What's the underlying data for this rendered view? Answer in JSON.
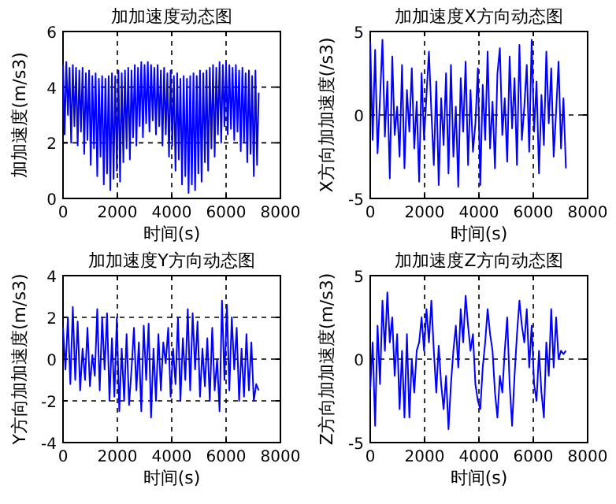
{
  "chart_data": [
    {
      "type": "line",
      "title": "加加速度动态图",
      "xlabel": "时间(s)",
      "ylabel": "加加速度(m/s3)",
      "xlim": [
        0,
        8000
      ],
      "ylim": [
        0,
        6
      ],
      "xticks": [
        0,
        2000,
        4000,
        6000,
        8000
      ],
      "yticks": [
        0,
        2,
        4,
        6
      ],
      "grid": true,
      "line_style": "solid",
      "x": [
        0,
        60,
        120,
        180,
        240,
        300,
        360,
        420,
        480,
        540,
        600,
        660,
        720,
        780,
        840,
        900,
        960,
        1020,
        1080,
        1140,
        1200,
        1260,
        1320,
        1380,
        1440,
        1500,
        1560,
        1620,
        1680,
        1740,
        1800,
        1860,
        1920,
        1980,
        2040,
        2100,
        2160,
        2220,
        2280,
        2340,
        2400,
        2460,
        2520,
        2580,
        2640,
        2700,
        2760,
        2820,
        2880,
        2940,
        3000,
        3060,
        3120,
        3180,
        3240,
        3300,
        3360,
        3420,
        3480,
        3540,
        3600,
        3660,
        3720,
        3780,
        3840,
        3900,
        3960,
        4020,
        4080,
        4140,
        4200,
        4260,
        4320,
        4380,
        4440,
        4500,
        4560,
        4620,
        4680,
        4740,
        4800,
        4860,
        4920,
        4980,
        5040,
        5100,
        5160,
        5220,
        5280,
        5340,
        5400,
        5460,
        5520,
        5580,
        5640,
        5700,
        5760,
        5820,
        5880,
        5940,
        6000,
        6060,
        6120,
        6180,
        6240,
        6300,
        6360,
        6420,
        6480,
        6540,
        6600,
        6660,
        6720,
        6780,
        6840,
        6900,
        6960,
        7020,
        7080,
        7140,
        7200
      ],
      "series": [
        {
          "color": "#0000ff",
          "values": [
            4.8,
            2.3,
            4.9,
            3.0,
            4.7,
            2.0,
            4.8,
            2.6,
            4.7,
            1.9,
            4.6,
            2.4,
            4.7,
            1.6,
            4.5,
            2.1,
            4.6,
            1.2,
            4.4,
            1.8,
            4.5,
            0.8,
            4.3,
            1.5,
            4.4,
            0.5,
            4.3,
            0.9,
            4.4,
            0.3,
            4.5,
            0.7,
            4.4,
            1.0,
            4.6,
            0.6,
            4.5,
            1.3,
            4.6,
            1.8,
            4.7,
            1.4,
            4.6,
            2.2,
            4.8,
            1.9,
            4.7,
            2.6,
            4.9,
            2.2,
            4.8,
            2.7,
            4.9,
            2.4,
            4.8,
            2.8,
            4.7,
            2.3,
            4.8,
            2.6,
            4.6,
            1.9,
            4.7,
            2.3,
            4.5,
            1.5,
            4.6,
            1.9,
            4.4,
            1.0,
            4.5,
            1.4,
            4.3,
            0.5,
            4.4,
            0.8,
            4.3,
            0.2,
            4.4,
            0.5,
            4.5,
            0.3,
            4.4,
            0.9,
            4.6,
            0.6,
            4.5,
            1.3,
            4.6,
            1.0,
            4.7,
            1.8,
            4.8,
            1.5,
            4.7,
            2.3,
            4.9,
            2.0,
            4.8,
            2.6,
            4.9,
            2.3,
            4.8,
            2.5,
            4.7,
            2.1,
            4.8,
            2.4,
            4.6,
            1.7,
            4.7,
            2.0,
            4.5,
            1.3,
            4.6,
            1.6,
            4.4,
            0.8,
            4.6,
            1.2,
            3.8
          ]
        }
      ]
    },
    {
      "type": "line",
      "title": "加加速度X方向动态图",
      "xlabel": "时间(s)",
      "ylabel": "X方向加加速度(/s3)",
      "xlim": [
        0,
        8000
      ],
      "ylim": [
        -5,
        5
      ],
      "xticks": [
        0,
        2000,
        4000,
        6000,
        8000
      ],
      "yticks": [
        -5,
        0,
        5
      ],
      "grid": true,
      "line_style": "solid",
      "x": [
        0,
        90,
        180,
        270,
        360,
        450,
        540,
        630,
        720,
        810,
        900,
        990,
        1080,
        1170,
        1260,
        1350,
        1440,
        1530,
        1620,
        1710,
        1800,
        1890,
        1980,
        2070,
        2160,
        2250,
        2340,
        2430,
        2520,
        2610,
        2700,
        2790,
        2880,
        2970,
        3060,
        3150,
        3240,
        3330,
        3420,
        3510,
        3600,
        3690,
        3780,
        3870,
        3960,
        4050,
        4140,
        4230,
        4320,
        4410,
        4500,
        4590,
        4680,
        4770,
        4860,
        4950,
        5040,
        5130,
        5220,
        5310,
        5400,
        5490,
        5580,
        5670,
        5760,
        5850,
        5940,
        6030,
        6120,
        6210,
        6300,
        6390,
        6480,
        6570,
        6660,
        6750,
        6840,
        6930,
        7020,
        7110,
        7200
      ],
      "series": [
        {
          "color": "#0000ff",
          "values": [
            4.4,
            -1.5,
            3.9,
            -2.3,
            1.0,
            4.5,
            -1.3,
            2.0,
            -3.8,
            3.5,
            -1.2,
            0.5,
            -2.5,
            3.0,
            -3.2,
            1.5,
            -1.0,
            2.8,
            -2.0,
            0.8,
            -4.0,
            2.5,
            -1.5,
            1.2,
            3.8,
            0.2,
            -3.0,
            2.0,
            -4.2,
            1.0,
            -1.8,
            2.5,
            -3.5,
            3.0,
            -2.5,
            0.5,
            -4.3,
            2.2,
            -1.0,
            3.2,
            -3.0,
            1.5,
            -2.2,
            -0.5,
            2.8,
            -4.2,
            1.8,
            -1.5,
            3.8,
            -2.0,
            0.8,
            -3.2,
            2.5,
            4.0,
            -1.2,
            1.0,
            -2.8,
            3.5,
            -0.8,
            2.2,
            -3.0,
            4.2,
            -1.5,
            0.5,
            3.0,
            -2.2,
            4.5,
            -1.0,
            2.0,
            -3.5,
            1.2,
            -1.8,
            3.8,
            -0.5,
            2.8,
            -2.5,
            0.2,
            3.2,
            -2.0,
            1.0,
            -3.2
          ]
        }
      ]
    },
    {
      "type": "line",
      "title": "加加速度Y方向动态图",
      "xlabel": "时间(s)",
      "ylabel": "Y方向加加速度(m/s3)",
      "xlim": [
        0,
        8000
      ],
      "ylim": [
        -4,
        4
      ],
      "xticks": [
        0,
        2000,
        4000,
        6000,
        8000
      ],
      "yticks": [
        -4,
        -2,
        0,
        2,
        4
      ],
      "grid": true,
      "line_style": "solid",
      "x": [
        0,
        90,
        180,
        270,
        360,
        450,
        540,
        630,
        720,
        810,
        900,
        990,
        1080,
        1170,
        1260,
        1350,
        1440,
        1530,
        1620,
        1710,
        1800,
        1890,
        1980,
        2070,
        2160,
        2250,
        2340,
        2430,
        2520,
        2610,
        2700,
        2790,
        2880,
        2970,
        3060,
        3150,
        3240,
        3330,
        3420,
        3510,
        3600,
        3690,
        3780,
        3870,
        3960,
        4050,
        4140,
        4230,
        4320,
        4410,
        4500,
        4590,
        4680,
        4770,
        4860,
        4950,
        5040,
        5130,
        5220,
        5310,
        5400,
        5490,
        5580,
        5670,
        5760,
        5850,
        5940,
        6030,
        6120,
        6210,
        6300,
        6390,
        6480,
        6570,
        6660,
        6750,
        6840,
        6930,
        7020,
        7110,
        7200
      ],
      "series": [
        {
          "color": "#0000ff",
          "values": [
            1.5,
            -0.5,
            2.0,
            -1.2,
            2.5,
            -1.0,
            1.8,
            -1.5,
            0.5,
            -1.0,
            1.5,
            -1.3,
            0.2,
            -0.8,
            2.4,
            -1.5,
            2.0,
            -0.5,
            2.2,
            -2.0,
            1.0,
            -1.8,
            2.0,
            -2.5,
            0.5,
            -2.0,
            1.2,
            -2.2,
            -0.5,
            1.5,
            -1.5,
            0.8,
            -2.5,
            1.6,
            -1.0,
            1.7,
            -2.8,
            0.5,
            -2.0,
            1.2,
            -1.5,
            0.8,
            -0.2,
            1.5,
            -1.8,
            0.5,
            -1.2,
            2.0,
            -2.0,
            1.0,
            -1.0,
            2.4,
            -1.5,
            2.2,
            -0.5,
            1.8,
            -1.8,
            0.5,
            -1.3,
            1.0,
            -2.0,
            1.5,
            -1.5,
            0.0,
            -2.5,
            2.8,
            -1.0,
            2.6,
            -1.5,
            2.0,
            -0.5,
            1.5,
            -2.0,
            0.5,
            -1.8,
            1.2,
            -1.5,
            0.8,
            -2.0,
            -1.2,
            -1.5
          ]
        }
      ]
    },
    {
      "type": "line",
      "title": "加加速度Z方向动态图",
      "xlabel": "时间(s)",
      "ylabel": "Z方向加加速度(m/s3)",
      "xlim": [
        0,
        8000
      ],
      "ylim": [
        -5,
        5
      ],
      "xticks": [
        0,
        2000,
        4000,
        6000,
        8000
      ],
      "yticks": [
        -5,
        0,
        5
      ],
      "grid": true,
      "line_style": "solid",
      "x": [
        0,
        90,
        180,
        270,
        360,
        450,
        540,
        630,
        720,
        810,
        900,
        990,
        1080,
        1170,
        1260,
        1350,
        1440,
        1530,
        1620,
        1710,
        1800,
        1890,
        1980,
        2070,
        2160,
        2250,
        2340,
        2430,
        2520,
        2610,
        2700,
        2790,
        2880,
        2970,
        3060,
        3150,
        3240,
        3330,
        3420,
        3510,
        3600,
        3690,
        3780,
        3870,
        3960,
        4050,
        4140,
        4230,
        4320,
        4410,
        4500,
        4590,
        4680,
        4770,
        4860,
        4950,
        5040,
        5130,
        5220,
        5310,
        5400,
        5490,
        5580,
        5670,
        5760,
        5850,
        5940,
        6030,
        6120,
        6210,
        6300,
        6390,
        6480,
        6570,
        6660,
        6750,
        6840,
        6930,
        7020,
        7110,
        7200
      ],
      "series": [
        {
          "color": "#0000ff",
          "values": [
            -1.8,
            1.0,
            -4.0,
            2.0,
            -1.5,
            3.5,
            0.5,
            4.0,
            1.0,
            2.5,
            -1.0,
            1.5,
            -3.0,
            0.5,
            -3.5,
            1.5,
            -3.5,
            0.0,
            -2.0,
            0.5,
            1.0,
            2.5,
            0.5,
            3.0,
            1.0,
            3.5,
            0.5,
            -2.0,
            0.8,
            -1.5,
            -3.0,
            -1.0,
            -4.2,
            -1.5,
            0.5,
            2.0,
            -0.5,
            3.0,
            1.0,
            3.8,
            2.0,
            0.5,
            1.5,
            -1.5,
            -2.5,
            -3.0,
            -0.5,
            1.0,
            3.0,
            1.5,
            0.5,
            -2.0,
            -3.5,
            -1.0,
            -2.0,
            0.5,
            2.5,
            -1.5,
            -4.0,
            -1.0,
            1.5,
            3.5,
            2.0,
            1.0,
            3.0,
            -0.5,
            2.0,
            -1.5,
            -2.5,
            0.5,
            -2.0,
            -3.5,
            1.0,
            -1.0,
            3.0,
            -0.5,
            2.5,
            0.0,
            0.5,
            0.3,
            0.5
          ]
        }
      ]
    }
  ]
}
